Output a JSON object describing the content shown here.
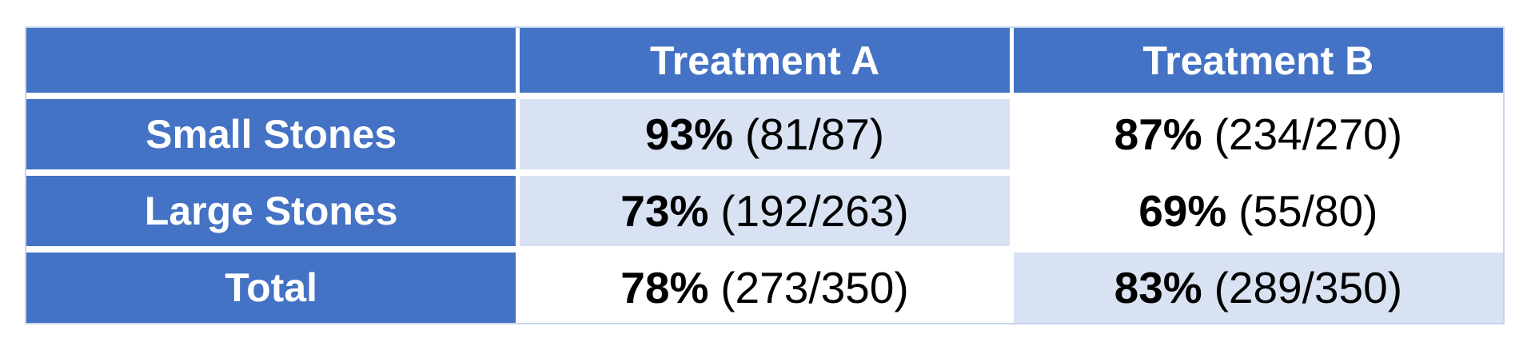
{
  "colors": {
    "header_fill": "#4472C4",
    "highlight_fill": "#D9E2F3",
    "plain_fill": "#FFFFFF",
    "header_text": "#FFFFFF",
    "data_text": "#000000",
    "outer_border": "#C7D4ED"
  },
  "table": {
    "corner_label": "",
    "column_headers": [
      "Treatment A",
      "Treatment B"
    ],
    "rows": [
      {
        "label": "Small Stones",
        "a_pct": "93%",
        "a_frac": "(81/87)",
        "a_highlighted": true,
        "b_pct": "87%",
        "b_frac": "(234/270)",
        "b_highlighted": false
      },
      {
        "label": "Large Stones",
        "a_pct": "73%",
        "a_frac": "(192/263)",
        "a_highlighted": true,
        "b_pct": "69%",
        "b_frac": "(55/80)",
        "b_highlighted": false
      },
      {
        "label": "Total",
        "a_pct": "78%",
        "a_frac": "(273/350)",
        "a_highlighted": false,
        "b_pct": "83%",
        "b_frac": "(289/350)",
        "b_highlighted": true
      }
    ]
  },
  "chart_data": {
    "type": "table",
    "title": "",
    "columns": [
      "",
      "Treatment A",
      "Treatment B"
    ],
    "row_labels": [
      "Small Stones",
      "Large Stones",
      "Total"
    ],
    "cells_display": [
      [
        "93% (81/87)",
        "87% (234/270)"
      ],
      [
        "73% (192/263)",
        "69% (55/80)"
      ],
      [
        "78% (273/350)",
        "83% (289/350)"
      ]
    ],
    "series": [
      {
        "name": "Treatment A",
        "values": [
          {
            "group": "Small Stones",
            "success_rate_pct": 93,
            "successes": 81,
            "n": 87
          },
          {
            "group": "Large Stones",
            "success_rate_pct": 73,
            "successes": 192,
            "n": 263
          },
          {
            "group": "Total",
            "success_rate_pct": 78,
            "successes": 273,
            "n": 350
          }
        ]
      },
      {
        "name": "Treatment B",
        "values": [
          {
            "group": "Small Stones",
            "success_rate_pct": 87,
            "successes": 234,
            "n": 270
          },
          {
            "group": "Large Stones",
            "success_rate_pct": 69,
            "successes": 55,
            "n": 80
          },
          {
            "group": "Total",
            "success_rate_pct": 83,
            "successes": 289,
            "n": 350
          }
        ]
      }
    ],
    "highlighted_cells": [
      "Small Stones / Treatment A",
      "Large Stones / Treatment A",
      "Total / Treatment B"
    ]
  }
}
